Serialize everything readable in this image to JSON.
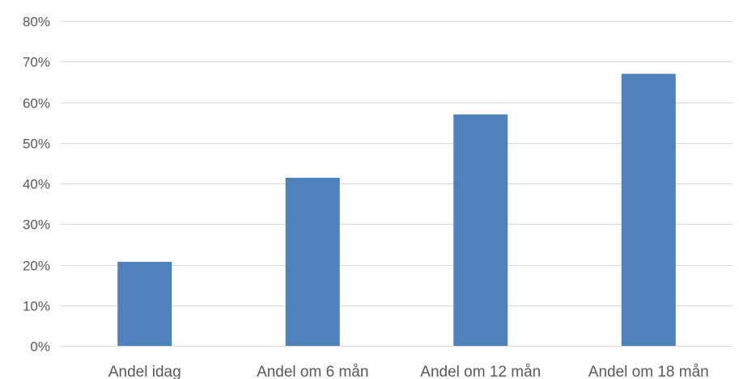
{
  "chart_data": {
    "type": "bar",
    "title": "",
    "xlabel": "",
    "ylabel": "",
    "categories": [
      "Andel idag",
      "Andel om 6 mån",
      "Andel om 12 mån",
      "Andel om 18 mån"
    ],
    "values": [
      0.207,
      0.414,
      0.57,
      0.67
    ],
    "ylim": [
      0,
      0.8
    ],
    "yticks": [
      0,
      0.1,
      0.2,
      0.3,
      0.4,
      0.5,
      0.6,
      0.7,
      0.8
    ],
    "ytick_labels": [
      "0%",
      "10%",
      "20%",
      "30%",
      "40%",
      "50%",
      "60%",
      "70%",
      "80%"
    ],
    "grid": true,
    "legend": "none",
    "colors": {
      "bar": "#4f81bd",
      "grid": "#d9d9d9",
      "text": "#595959"
    }
  }
}
